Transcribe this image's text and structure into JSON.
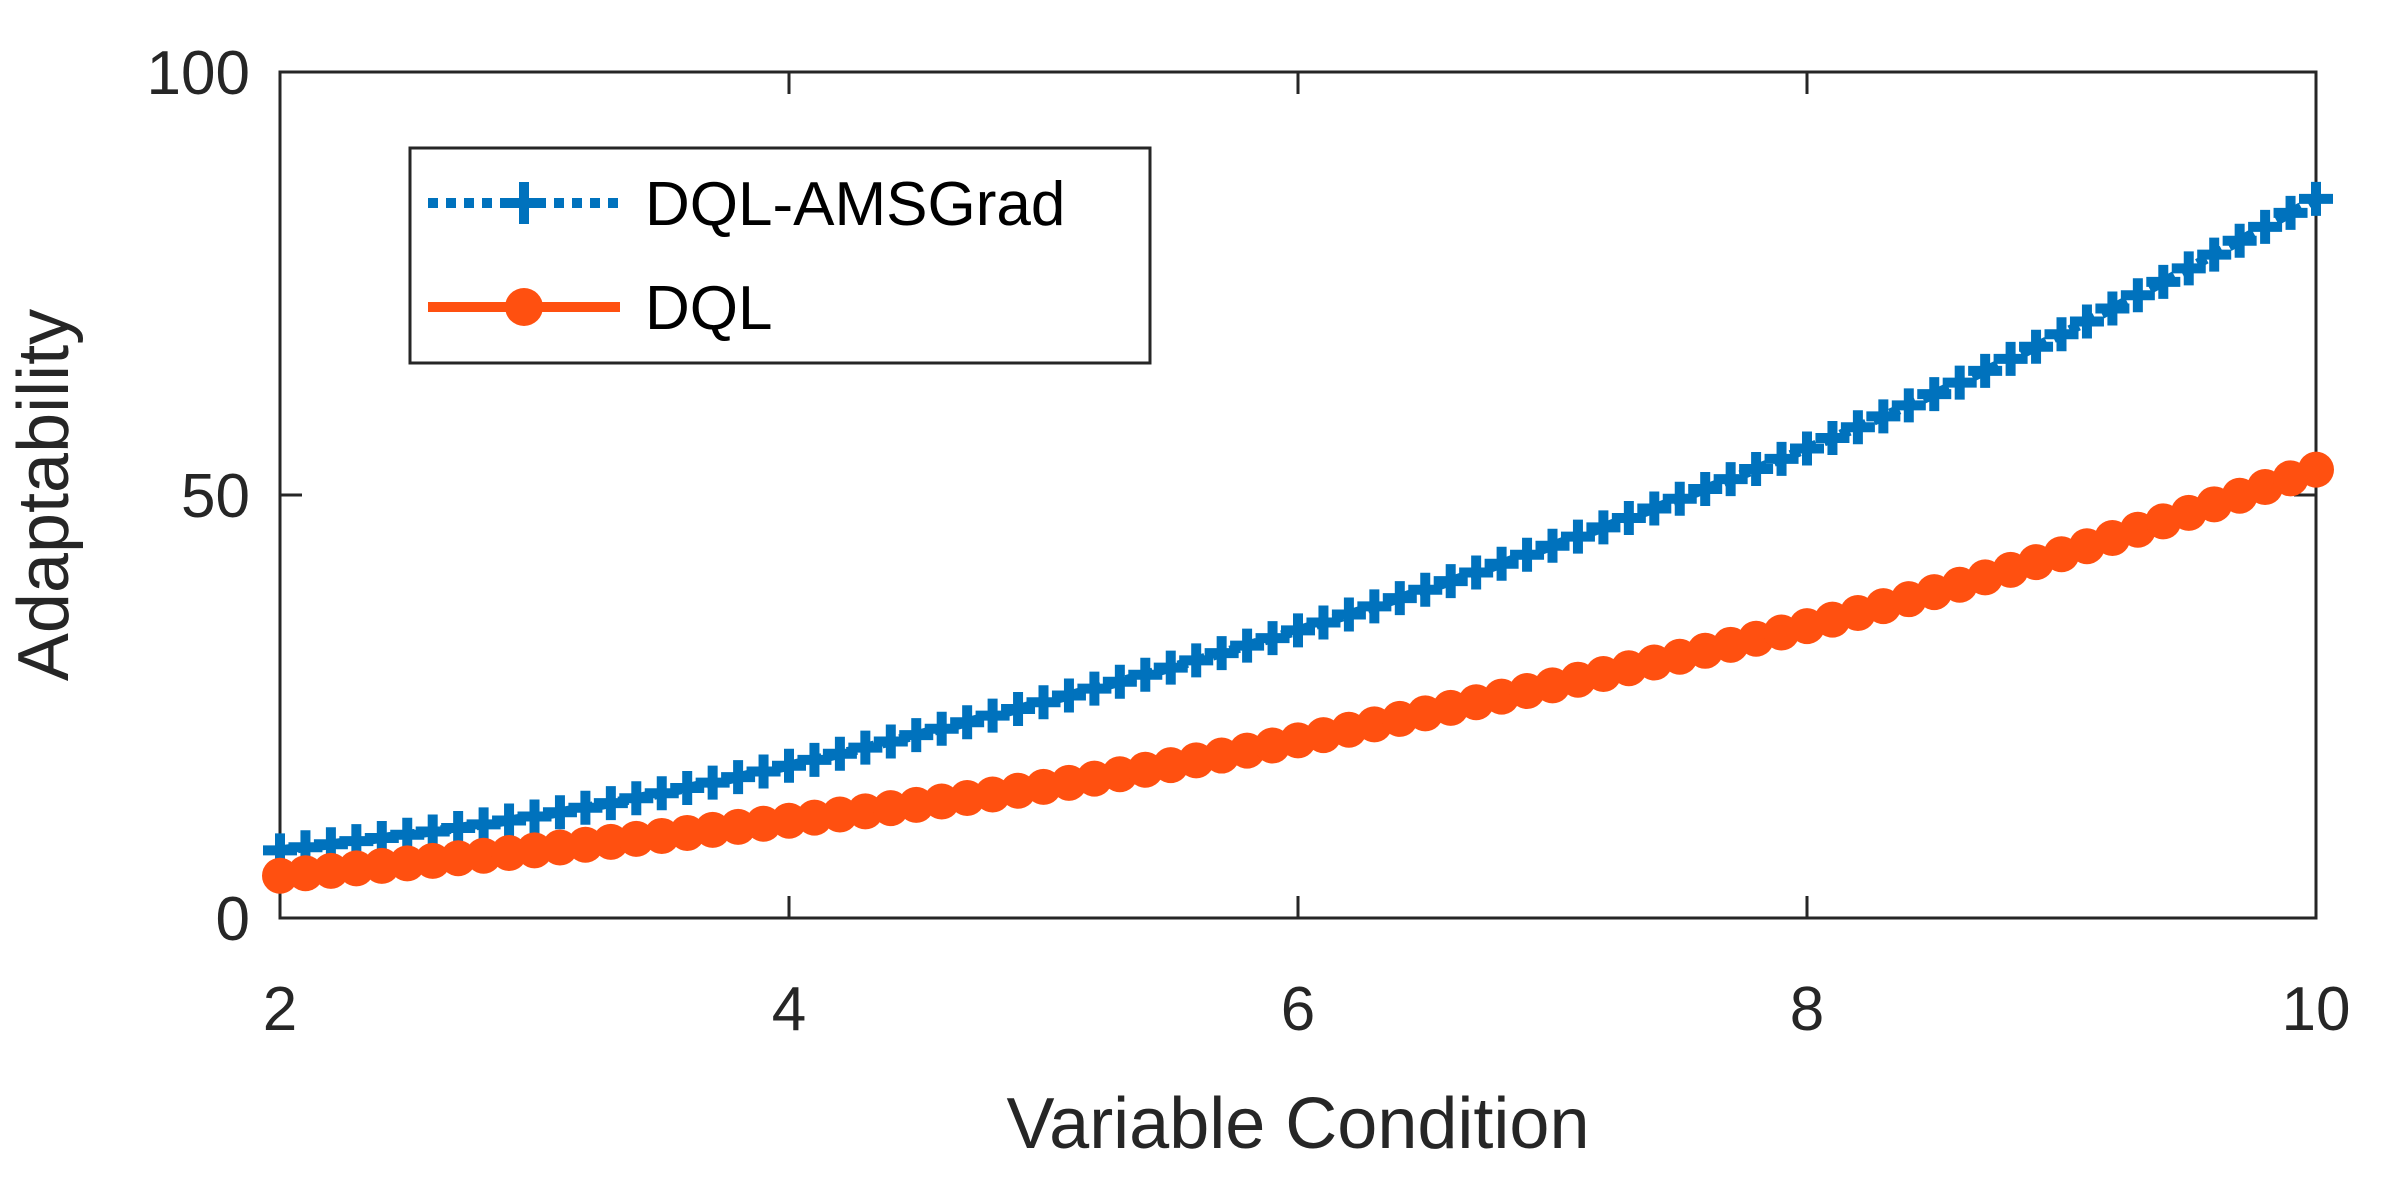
{
  "chart_data": {
    "type": "line",
    "title": "",
    "xlabel": "Variable Condition",
    "ylabel": "Adaptability",
    "xlim": [
      2,
      10
    ],
    "ylim": [
      0,
      100
    ],
    "xticks": [
      2,
      4,
      6,
      8,
      10
    ],
    "yticks": [
      0,
      50,
      100
    ],
    "xtick_labels": [
      "2",
      "4",
      "6",
      "8",
      "10"
    ],
    "ytick_labels": [
      "0",
      "50",
      "100"
    ],
    "grid": false,
    "legend_position": "top-left",
    "x_sample": {
      "start": 2,
      "end": 10,
      "count": 81
    },
    "series": [
      {
        "name": "DQL-AMSGrad",
        "color": "#0072BD",
        "line_style": "dotted",
        "marker": "plus",
        "x": [
          2,
          3,
          4,
          5,
          6,
          7,
          8,
          9,
          10
        ],
        "values": [
          8,
          12,
          18,
          25.5,
          34,
          44,
          55.5,
          69,
          85
        ]
      },
      {
        "name": "DQL",
        "color": "#FF5010",
        "line_style": "solid",
        "marker": "circle",
        "x": [
          2,
          3,
          4,
          5,
          6,
          7,
          8,
          9,
          10
        ],
        "values": [
          5,
          8,
          11.5,
          15.5,
          21,
          27.5,
          34.5,
          43,
          53
        ]
      }
    ]
  }
}
